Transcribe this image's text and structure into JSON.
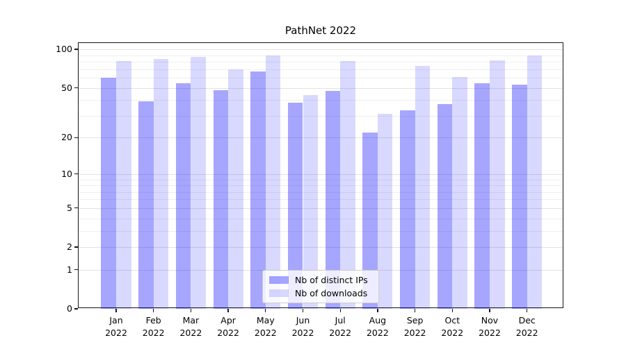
{
  "figure": {
    "background": "#ffffff"
  },
  "chart_data": {
    "type": "bar",
    "title": "PathNet 2022",
    "categories": [
      "Jan 2022",
      "Feb 2022",
      "Mar 2022",
      "Apr 2022",
      "May 2022",
      "Jun 2022",
      "Jul 2022",
      "Aug 2022",
      "Sep 2022",
      "Oct 2022",
      "Nov 2022",
      "Dec 2022"
    ],
    "x_tick_months": [
      "Jan",
      "Feb",
      "Mar",
      "Apr",
      "May",
      "Jun",
      "Jul",
      "Aug",
      "Sep",
      "Oct",
      "Nov",
      "Dec"
    ],
    "x_tick_year": "2022",
    "series": [
      {
        "name": "Nb of distinct IPs",
        "fill": "rgba(0,0,255,0.35)",
        "color_on_white": "#a6a6ff",
        "values": [
          60,
          39,
          54,
          48,
          67,
          38,
          47,
          22,
          33,
          37,
          54,
          53
        ]
      },
      {
        "name": "Nb of downloads",
        "fill": "rgba(0,0,255,0.15)",
        "color_on_white": "#d9d9ff",
        "values": [
          81,
          84,
          87,
          70,
          90,
          44,
          81,
          31,
          74,
          61,
          82,
          89
        ]
      }
    ],
    "y_axis": {
      "scale": "log1p",
      "tick_values": [
        0,
        1,
        2,
        5,
        10,
        20,
        50,
        100
      ],
      "tick_labels": [
        "0",
        "1",
        "2",
        "5",
        "10",
        "20",
        "50",
        "100"
      ],
      "minor_gridlines": [
        3,
        4,
        6,
        7,
        8,
        9,
        30,
        40,
        60,
        70,
        80,
        90
      ],
      "max": 112
    },
    "grid": "on",
    "legend_position": "lower center",
    "spine_color": "#141414",
    "gridline_color_major": "#e2e2e2",
    "gridline_color_minor": "#efefef"
  }
}
